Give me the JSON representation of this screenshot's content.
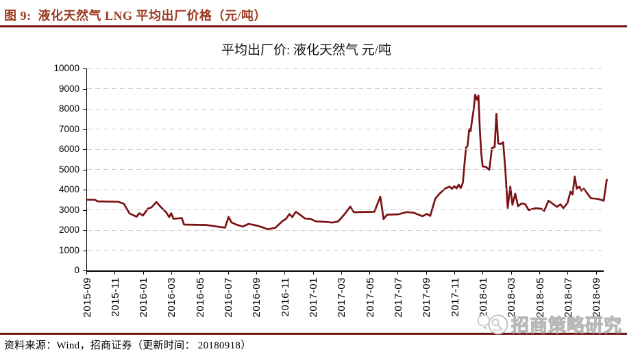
{
  "figure_header": {
    "label": "图 9:",
    "title": "液化天然气 LNG 平均出厂价格（元/吨）"
  },
  "source_line": {
    "prefix": "资料来源：",
    "text": "Wind，招商证券（更新时间： 20180918）"
  },
  "watermark": {
    "text": "招商策略研究"
  },
  "colors": {
    "line": "#7A1113",
    "grid": "#C9C9C9",
    "axis": "#000000",
    "header_text": "#9B3A20",
    "rule": "#70120F",
    "watermark_gray": "#BDBDBD"
  },
  "chart_data": {
    "type": "line",
    "title": "平均出厂价: 液化天然气  元/吨",
    "series_name": "平均出厂价:液化天然气",
    "unit": "元/吨",
    "xlabel": "",
    "ylabel": "",
    "ylim": [
      0,
      10000
    ],
    "y_ticks": [
      0,
      1000,
      2000,
      3000,
      4000,
      5000,
      6000,
      7000,
      8000,
      9000,
      10000
    ],
    "grid": true,
    "legend_position": "none",
    "months_span": 36.5,
    "x_tick_every_months": 2,
    "x_tick_labels": [
      "2015-09",
      "2015-11",
      "2016-01",
      "2016-03",
      "2016-05",
      "2016-07",
      "2016-09",
      "2016-11",
      "2017-01",
      "2017-03",
      "2017-05",
      "2017-07",
      "2017-09",
      "2017-11",
      "2018-01",
      "2018-03",
      "2018-05",
      "2018-07",
      "2018-09"
    ],
    "points_format": "[months_since_2015_09, price_yuan_per_ton]",
    "points": [
      [
        0.0,
        3500
      ],
      [
        0.55,
        3500
      ],
      [
        0.75,
        3420
      ],
      [
        2.2,
        3400
      ],
      [
        2.6,
        3300
      ],
      [
        3.0,
        2820
      ],
      [
        3.5,
        2660
      ],
      [
        3.7,
        2830
      ],
      [
        3.95,
        2720
      ],
      [
        4.3,
        3060
      ],
      [
        4.55,
        3120
      ],
      [
        4.9,
        3390
      ],
      [
        5.2,
        3150
      ],
      [
        5.6,
        2870
      ],
      [
        5.8,
        2640
      ],
      [
        5.95,
        2830
      ],
      [
        6.1,
        2560
      ],
      [
        6.7,
        2590
      ],
      [
        6.85,
        2270
      ],
      [
        8.4,
        2250
      ],
      [
        9.1,
        2180
      ],
      [
        9.75,
        2120
      ],
      [
        10.0,
        2650
      ],
      [
        10.2,
        2380
      ],
      [
        10.5,
        2280
      ],
      [
        11.0,
        2170
      ],
      [
        11.4,
        2300
      ],
      [
        11.8,
        2250
      ],
      [
        12.3,
        2160
      ],
      [
        12.75,
        2040
      ],
      [
        13.3,
        2110
      ],
      [
        13.8,
        2440
      ],
      [
        14.05,
        2550
      ],
      [
        14.3,
        2790
      ],
      [
        14.5,
        2640
      ],
      [
        14.75,
        2900
      ],
      [
        15.05,
        2760
      ],
      [
        15.4,
        2570
      ],
      [
        15.8,
        2550
      ],
      [
        16.15,
        2430
      ],
      [
        16.9,
        2400
      ],
      [
        17.35,
        2370
      ],
      [
        17.75,
        2430
      ],
      [
        18.2,
        2790
      ],
      [
        18.6,
        3160
      ],
      [
        18.85,
        2880
      ],
      [
        20.3,
        2900
      ],
      [
        20.72,
        3650
      ],
      [
        20.95,
        2540
      ],
      [
        21.2,
        2760
      ],
      [
        22.0,
        2780
      ],
      [
        22.6,
        2890
      ],
      [
        23.1,
        2850
      ],
      [
        23.7,
        2680
      ],
      [
        24.0,
        2800
      ],
      [
        24.25,
        2700
      ],
      [
        24.6,
        3550
      ],
      [
        24.9,
        3800
      ],
      [
        25.3,
        4050
      ],
      [
        25.6,
        4150
      ],
      [
        25.78,
        4050
      ],
      [
        25.95,
        4170
      ],
      [
        26.1,
        4060
      ],
      [
        26.25,
        4240
      ],
      [
        26.4,
        4080
      ],
      [
        26.55,
        4350
      ],
      [
        26.67,
        5300
      ],
      [
        26.78,
        6100
      ],
      [
        26.88,
        6160
      ],
      [
        27.0,
        7000
      ],
      [
        27.1,
        6900
      ],
      [
        27.2,
        7450
      ],
      [
        27.3,
        7900
      ],
      [
        27.42,
        8700
      ],
      [
        27.55,
        8450
      ],
      [
        27.65,
        8650
      ],
      [
        27.75,
        7000
      ],
      [
        27.85,
        5800
      ],
      [
        27.95,
        5150
      ],
      [
        28.2,
        5120
      ],
      [
        28.42,
        4980
      ],
      [
        28.6,
        6050
      ],
      [
        28.8,
        6120
      ],
      [
        28.92,
        7750
      ],
      [
        29.05,
        6300
      ],
      [
        29.2,
        6250
      ],
      [
        29.4,
        6350
      ],
      [
        29.55,
        5000
      ],
      [
        29.72,
        3100
      ],
      [
        29.9,
        4150
      ],
      [
        30.05,
        3250
      ],
      [
        30.25,
        3800
      ],
      [
        30.45,
        3180
      ],
      [
        30.7,
        3320
      ],
      [
        30.95,
        3280
      ],
      [
        31.2,
        2990
      ],
      [
        31.7,
        3080
      ],
      [
        32.1,
        3050
      ],
      [
        32.3,
        2950
      ],
      [
        32.6,
        3450
      ],
      [
        33.2,
        3150
      ],
      [
        33.45,
        3270
      ],
      [
        33.65,
        3080
      ],
      [
        33.95,
        3350
      ],
      [
        34.15,
        3900
      ],
      [
        34.3,
        3760
      ],
      [
        34.45,
        4650
      ],
      [
        34.6,
        4050
      ],
      [
        34.78,
        4150
      ],
      [
        34.92,
        3950
      ],
      [
        35.1,
        4050
      ],
      [
        35.3,
        3850
      ],
      [
        35.6,
        3570
      ],
      [
        36.0,
        3550
      ],
      [
        36.3,
        3500
      ],
      [
        36.5,
        3450
      ],
      [
        36.72,
        4500
      ]
    ]
  }
}
